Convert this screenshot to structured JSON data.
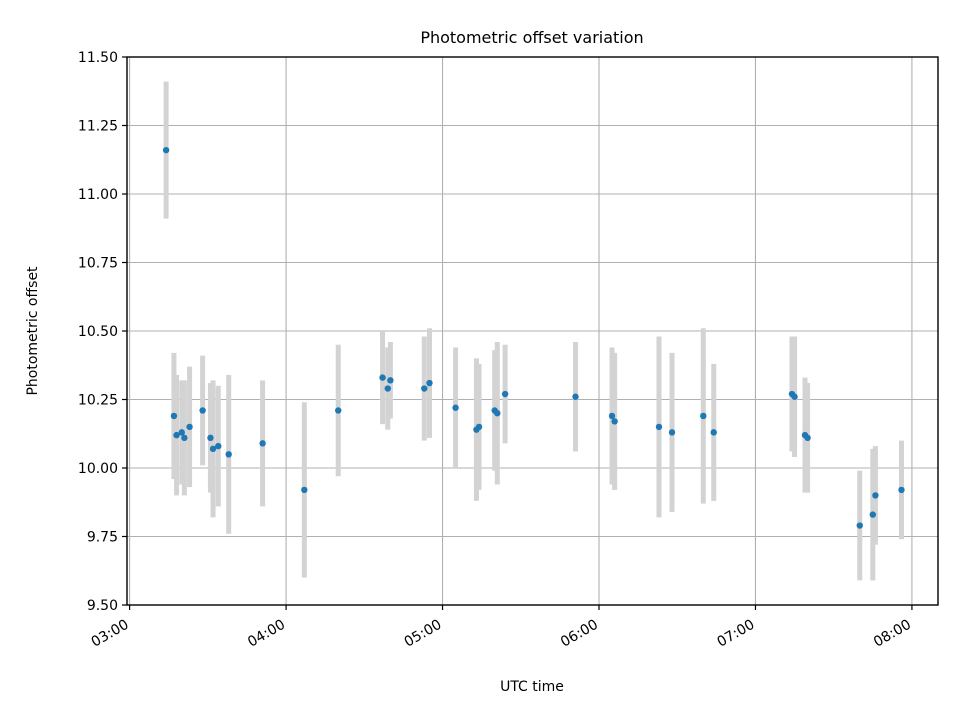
{
  "chart_data": {
    "type": "scatter",
    "title": "Photometric offset variation",
    "xlabel": "UTC time",
    "ylabel": "Photometric offset",
    "x_unit": "UTC time of day",
    "xlim": [
      "02:59",
      "08:10"
    ],
    "ylim": [
      9.5,
      11.5
    ],
    "x_ticks": [
      "03:00",
      "04:00",
      "05:00",
      "06:00",
      "07:00",
      "08:00"
    ],
    "y_ticks": [
      "9.50",
      "9.75",
      "10.00",
      "10.25",
      "10.50",
      "10.75",
      "11.00",
      "11.25",
      "11.50"
    ],
    "grid": true,
    "marker_color": "#1f77b4",
    "errorbar_color": "#d3d3d3",
    "series": [
      {
        "points": [
          {
            "t": "03:14",
            "y": 11.16,
            "err": 0.25
          },
          {
            "t": "03:17",
            "y": 10.19,
            "err": 0.23
          },
          {
            "t": "03:18",
            "y": 10.12,
            "err": 0.22
          },
          {
            "t": "03:20",
            "y": 10.13,
            "err": 0.19
          },
          {
            "t": "03:21",
            "y": 10.11,
            "err": 0.21
          },
          {
            "t": "03:23",
            "y": 10.15,
            "err": 0.22
          },
          {
            "t": "03:28",
            "y": 10.21,
            "err": 0.2
          },
          {
            "t": "03:31",
            "y": 10.11,
            "err": 0.2
          },
          {
            "t": "03:32",
            "y": 10.07,
            "err": 0.25
          },
          {
            "t": "03:34",
            "y": 10.08,
            "err": 0.22
          },
          {
            "t": "03:38",
            "y": 10.05,
            "err": 0.29
          },
          {
            "t": "03:51",
            "y": 10.09,
            "err": 0.23
          },
          {
            "t": "04:07",
            "y": 9.92,
            "err": 0.32
          },
          {
            "t": "04:20",
            "y": 10.21,
            "err": 0.24
          },
          {
            "t": "04:37",
            "y": 10.33,
            "err": 0.17
          },
          {
            "t": "04:39",
            "y": 10.29,
            "err": 0.15
          },
          {
            "t": "04:40",
            "y": 10.32,
            "err": 0.14
          },
          {
            "t": "04:53",
            "y": 10.29,
            "err": 0.19
          },
          {
            "t": "04:55",
            "y": 10.31,
            "err": 0.2
          },
          {
            "t": "05:05",
            "y": 10.22,
            "err": 0.22
          },
          {
            "t": "05:13",
            "y": 10.14,
            "err": 0.26
          },
          {
            "t": "05:14",
            "y": 10.15,
            "err": 0.23
          },
          {
            "t": "05:20",
            "y": 10.21,
            "err": 0.22
          },
          {
            "t": "05:21",
            "y": 10.2,
            "err": 0.26
          },
          {
            "t": "05:24",
            "y": 10.27,
            "err": 0.18
          },
          {
            "t": "05:51",
            "y": 10.26,
            "err": 0.2
          },
          {
            "t": "06:05",
            "y": 10.19,
            "err": 0.25
          },
          {
            "t": "06:06",
            "y": 10.17,
            "err": 0.25
          },
          {
            "t": "06:23",
            "y": 10.15,
            "err": 0.33
          },
          {
            "t": "06:28",
            "y": 10.13,
            "err": 0.29
          },
          {
            "t": "06:40",
            "y": 10.19,
            "err": 0.32
          },
          {
            "t": "06:44",
            "y": 10.13,
            "err": 0.25
          },
          {
            "t": "07:14",
            "y": 10.27,
            "err": 0.21
          },
          {
            "t": "07:15",
            "y": 10.26,
            "err": 0.22
          },
          {
            "t": "07:19",
            "y": 10.12,
            "err": 0.21
          },
          {
            "t": "07:20",
            "y": 10.11,
            "err": 0.2
          },
          {
            "t": "07:40",
            "y": 9.79,
            "err": 0.2
          },
          {
            "t": "07:45",
            "y": 9.83,
            "err": 0.24
          },
          {
            "t": "07:46",
            "y": 9.9,
            "err": 0.18
          },
          {
            "t": "07:56",
            "y": 9.92,
            "err": 0.18
          }
        ]
      }
    ]
  }
}
